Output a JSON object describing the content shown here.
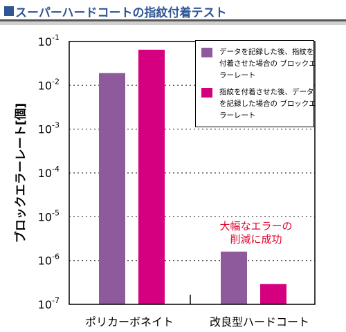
{
  "header": {
    "title": "スーパーハードコートの指紋付着テスト"
  },
  "chart_data": {
    "type": "bar",
    "ylabel": "ブロックエラーレート[個]",
    "yscale": "log",
    "ylim": [
      1e-07,
      0.1
    ],
    "ytick_exponents": [
      "-1",
      "-2",
      "-3",
      "-4",
      "-5",
      "-6",
      "-7"
    ],
    "categories": [
      "ポリカーボネイト",
      "改良型ハードコート"
    ],
    "series": [
      {
        "name": "データを記録した後、指紋を付着させた場合の ブロックエラーレート",
        "color": "#8e5a9b",
        "values": [
          0.019,
          1.6e-06
        ]
      },
      {
        "name": "指紋を付着させた後、データを記録した場合の ブロックエラーレート",
        "color": "#d5007f",
        "values": [
          0.065,
          2.9e-07
        ]
      }
    ],
    "grid": true,
    "legend_position": "top-right",
    "annotation": {
      "line1": "大幅なエラーの",
      "line2": "削減に成功",
      "color": "#e0002a"
    }
  }
}
